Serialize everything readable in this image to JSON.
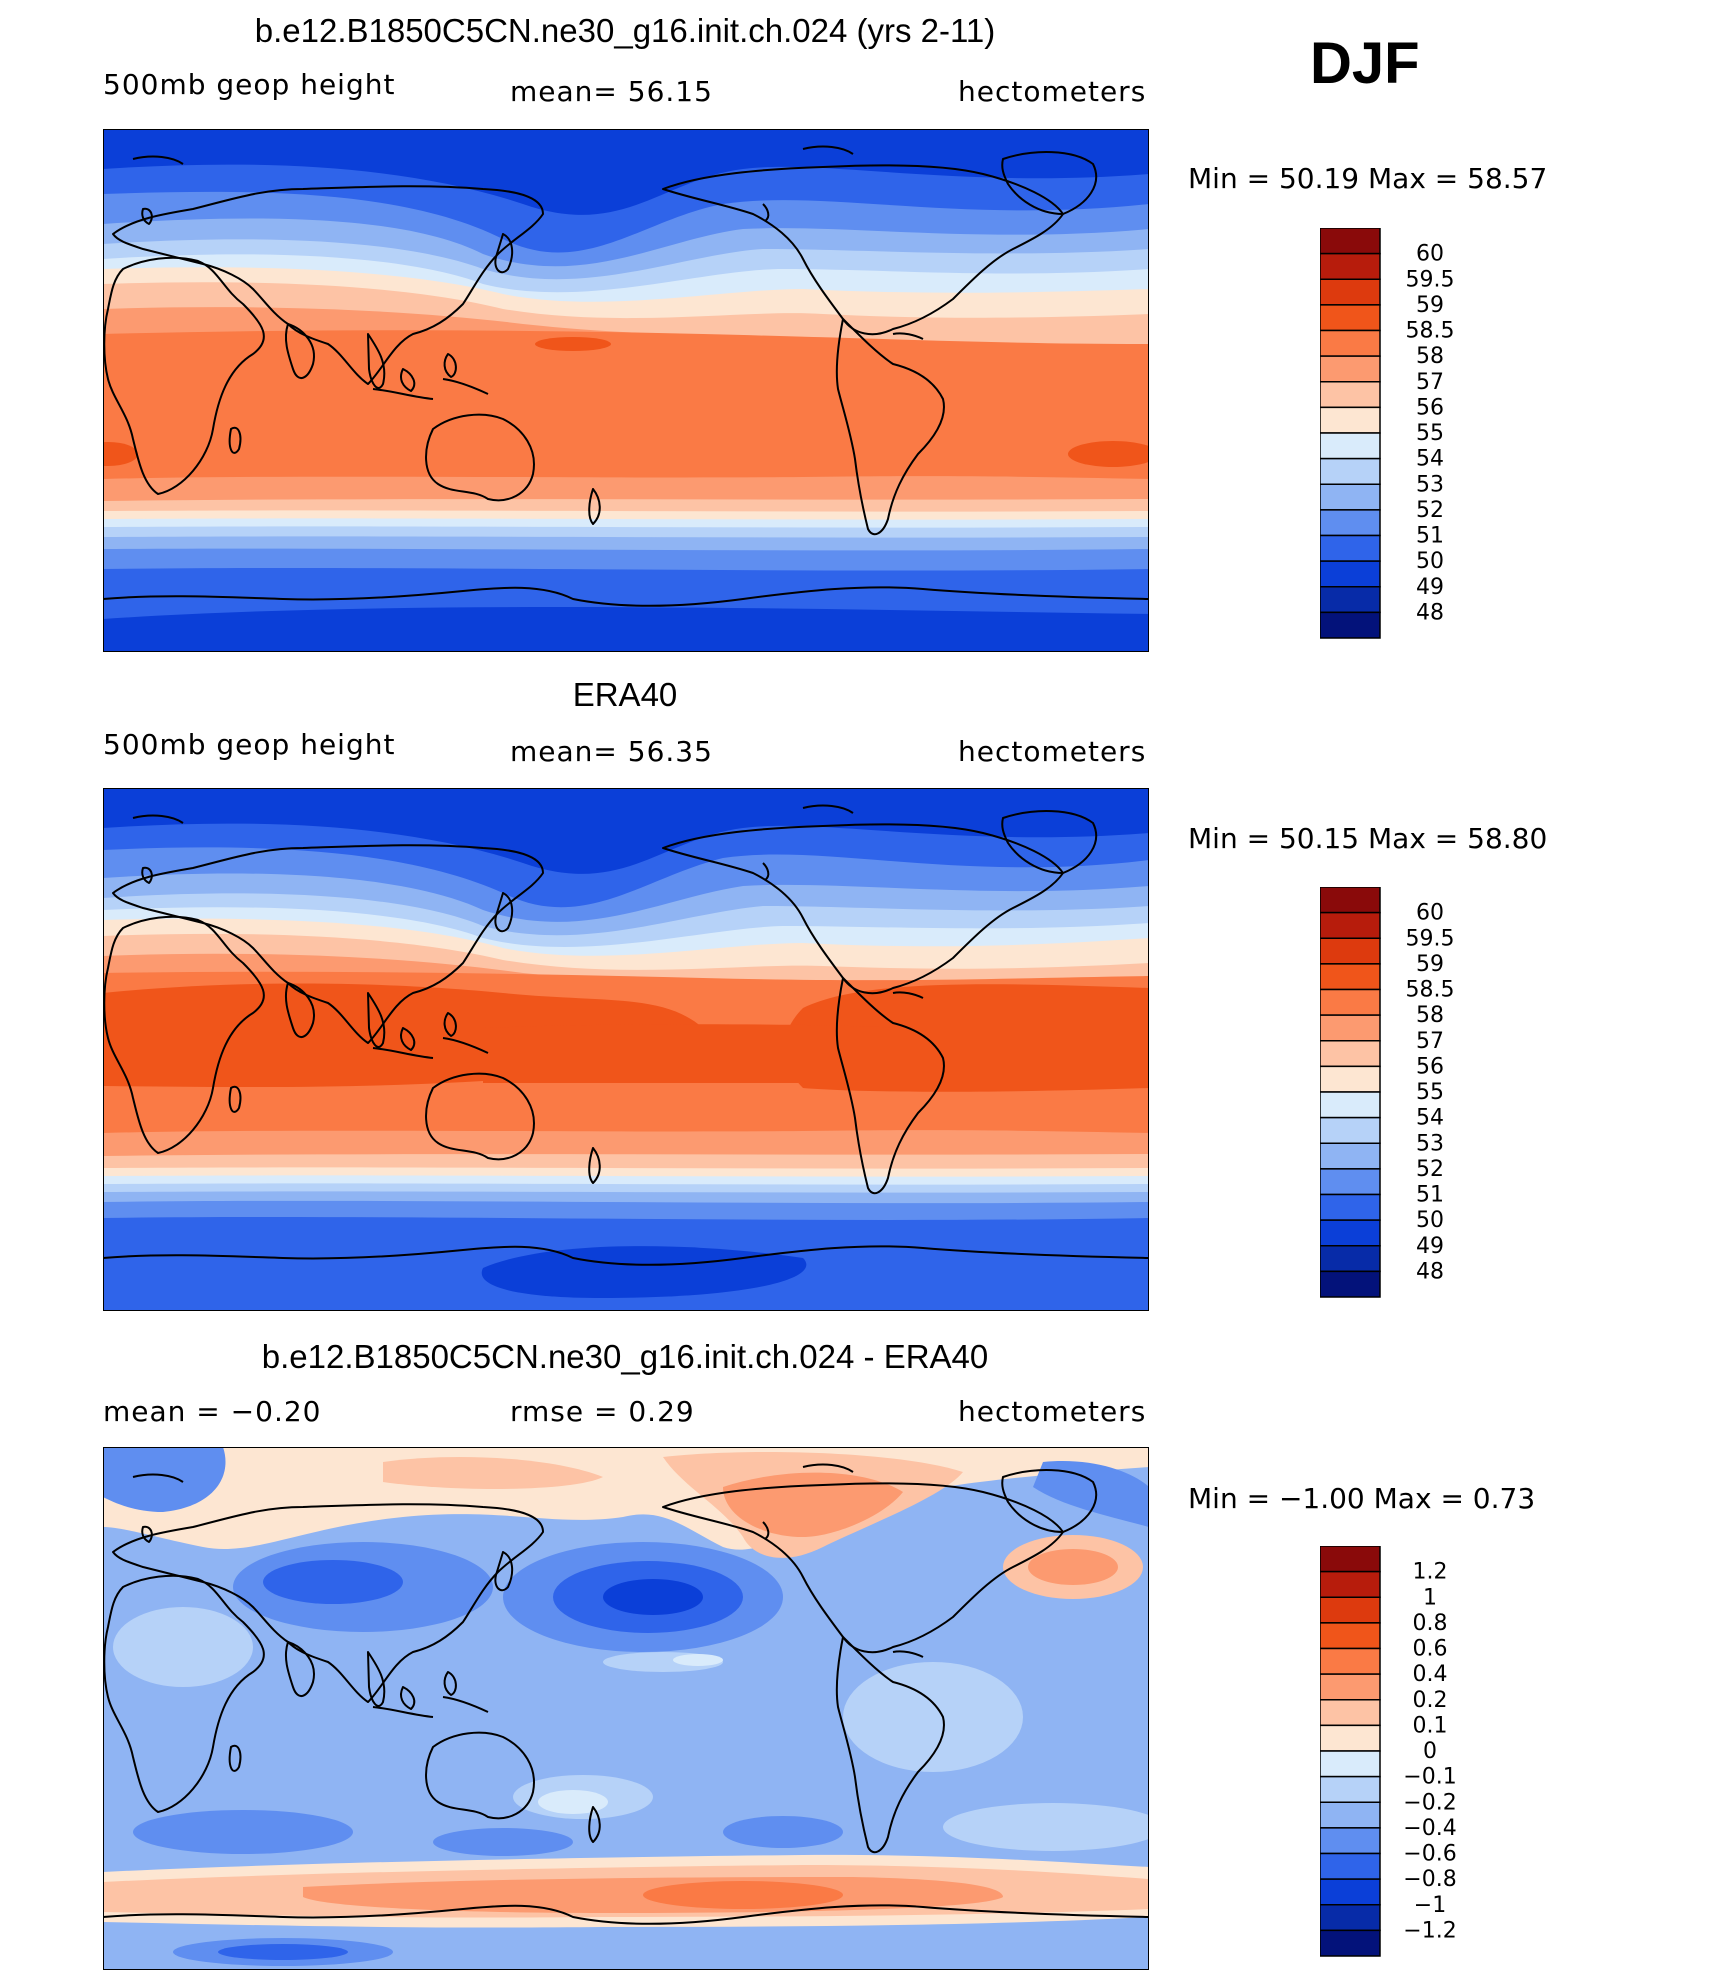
{
  "season": "DJF",
  "panels": [
    {
      "title": "b.e12.B1850C5CN.ne30_g16.init.ch.024 (yrs 2-11)",
      "left_text": "500mb  geop  height",
      "center_text": "mean=   56.15",
      "units": "hectometers",
      "minmax": "Min  =    50.19  Max  =    58.57",
      "colorbar_labels": [
        "60",
        "59.5",
        "59",
        "58.5",
        "58",
        "57",
        "56",
        "55",
        "54",
        "53",
        "52",
        "51",
        "50",
        "49",
        "48"
      ],
      "colorbar_colors": [
        "#8a0a0a",
        "#b71c0c",
        "#dd3a0e",
        "#f0551a",
        "#fa7a45",
        "#fc9a70",
        "#fdc3a5",
        "#fde6d2",
        "#d9ebfb",
        "#b6d2f8",
        "#8fb4f3",
        "#5f8ef0",
        "#2f64ea",
        "#0b3fd8",
        "#072ba8",
        "#03127a"
      ],
      "colors": {
        "c49": "#0b3fd8",
        "c50": "#2f64ea",
        "c51": "#5f8ef0",
        "c52": "#8fb4f3",
        "c53": "#b6d2f8",
        "c54": "#d9ebfb",
        "c55": "#fde6d2",
        "c56": "#fdc3a5",
        "c57": "#fc9a70",
        "c58": "#fa7a45",
        "c585": "#f0551a"
      }
    },
    {
      "title": "ERA40",
      "left_text": "500mb  geop  height",
      "center_text": "mean=   56.35",
      "units": "hectometers",
      "minmax": "Min  =    50.15  Max  =    58.80",
      "colorbar_labels": [
        "60",
        "59.5",
        "59",
        "58.5",
        "58",
        "57",
        "56",
        "55",
        "54",
        "53",
        "52",
        "51",
        "50",
        "49",
        "48"
      ],
      "colorbar_colors": [
        "#8a0a0a",
        "#b71c0c",
        "#dd3a0e",
        "#f0551a",
        "#fa7a45",
        "#fc9a70",
        "#fdc3a5",
        "#fde6d2",
        "#d9ebfb",
        "#b6d2f8",
        "#8fb4f3",
        "#5f8ef0",
        "#2f64ea",
        "#0b3fd8",
        "#072ba8",
        "#03127a"
      ],
      "colors": {
        "c49": "#0b3fd8",
        "c50": "#2f64ea",
        "c51": "#5f8ef0",
        "c52": "#8fb4f3",
        "c53": "#b6d2f8",
        "c54": "#d9ebfb",
        "c55": "#fde6d2",
        "c56": "#fdc3a5",
        "c57": "#fc9a70",
        "c58": "#fa7a45",
        "c585": "#f0551a"
      }
    },
    {
      "title": "b.e12.B1850C5CN.ne30_g16.init.ch.024 - ERA40",
      "left_text": "mean  =    −0.20",
      "center_text": "rmse  =     0.29",
      "units": "hectometers",
      "minmax": "Min  =    −1.00  Max  =      0.73",
      "colorbar_labels": [
        "1.2",
        "1",
        "0.8",
        "0.6",
        "0.4",
        "0.2",
        "0.1",
        "0",
        "−0.1",
        "−0.2",
        "−0.4",
        "−0.6",
        "−0.8",
        "−1",
        "−1.2"
      ],
      "colorbar_colors": [
        "#8a0a0a",
        "#b71c0c",
        "#dd3a0e",
        "#f0551a",
        "#fa7a45",
        "#fc9a70",
        "#fdc3a5",
        "#fde6d2",
        "#d9ebfb",
        "#b6d2f8",
        "#8fb4f3",
        "#5f8ef0",
        "#2f64ea",
        "#0b3fd8",
        "#072ba8",
        "#03127a"
      ],
      "colors": {
        "neg1": "#0b3fd8",
        "neg08": "#2f64ea",
        "neg06": "#5f8ef0",
        "neg04": "#8fb4f3",
        "neg02": "#b6d2f8",
        "neg01": "#d9ebfb",
        "pos0": "#fde6d2",
        "pos01": "#fdc3a5",
        "pos02": "#fc9a70",
        "pos04": "#fa7a45"
      }
    }
  ]
}
